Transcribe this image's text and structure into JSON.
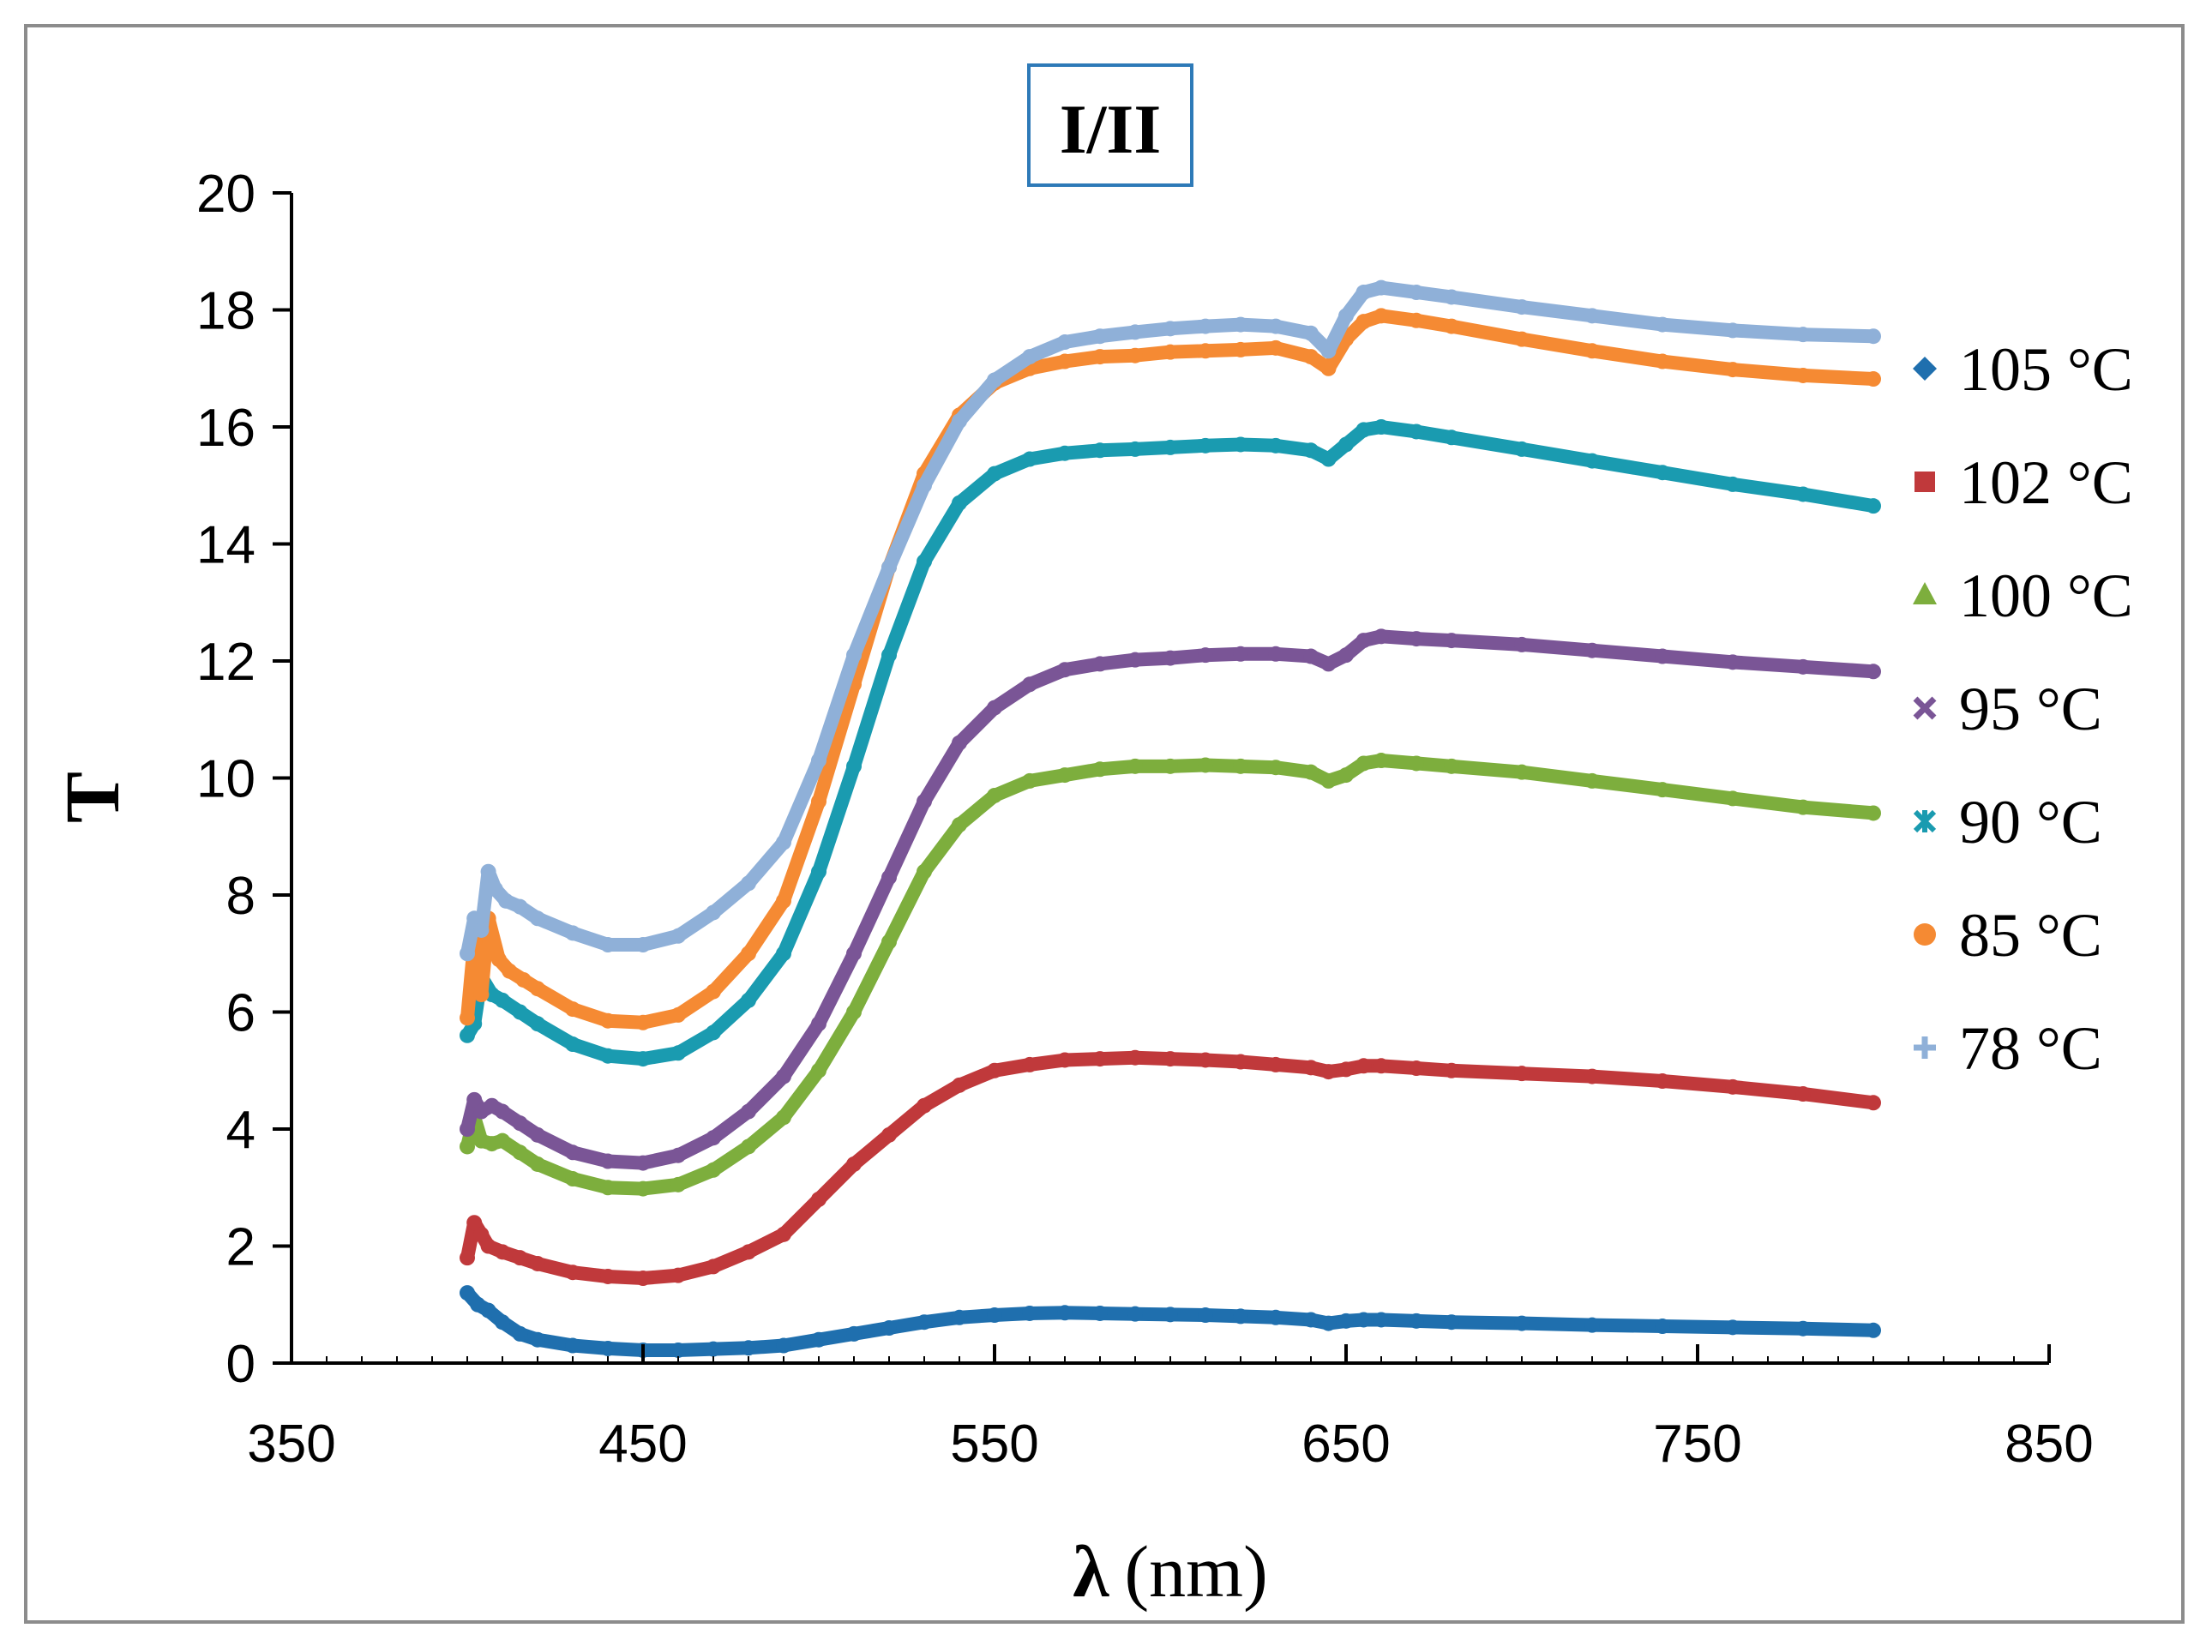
{
  "chart_data": {
    "type": "scatter",
    "title": "I/II",
    "xlabel_symbol": "λ",
    "xlabel_unit": "(nm)",
    "ylabel": "T",
    "xlim": [
      350,
      850
    ],
    "ylim": [
      0,
      20
    ],
    "xticks": [
      350,
      450,
      550,
      650,
      750,
      850
    ],
    "yticks": [
      0,
      2,
      4,
      6,
      8,
      10,
      12,
      14,
      16,
      18,
      20
    ],
    "legend_position": "right",
    "series": [
      {
        "name": "105 °C",
        "color": "#1f6fae",
        "marker": "diamond",
        "x": [
          400,
          403,
          406,
          410,
          415,
          420,
          430,
          440,
          450,
          460,
          470,
          480,
          490,
          500,
          510,
          520,
          530,
          540,
          550,
          560,
          570,
          580,
          590,
          600,
          610,
          620,
          630,
          640,
          645,
          650,
          655,
          660,
          670,
          680,
          700,
          720,
          740,
          760,
          780,
          800
        ],
        "y": [
          1.2,
          1.0,
          0.9,
          0.7,
          0.5,
          0.4,
          0.3,
          0.25,
          0.22,
          0.22,
          0.24,
          0.26,
          0.3,
          0.4,
          0.5,
          0.6,
          0.7,
          0.78,
          0.82,
          0.85,
          0.86,
          0.85,
          0.84,
          0.83,
          0.82,
          0.8,
          0.78,
          0.74,
          0.68,
          0.72,
          0.74,
          0.74,
          0.72,
          0.7,
          0.68,
          0.65,
          0.63,
          0.61,
          0.59,
          0.56
        ]
      },
      {
        "name": "102 °C",
        "color": "#c0393b",
        "marker": "square",
        "x": [
          400,
          402,
          404,
          406,
          410,
          415,
          420,
          430,
          440,
          450,
          460,
          470,
          480,
          490,
          500,
          510,
          520,
          530,
          540,
          550,
          560,
          570,
          580,
          590,
          600,
          610,
          620,
          630,
          640,
          645,
          650,
          655,
          660,
          670,
          680,
          700,
          720,
          740,
          760,
          780,
          800
        ],
        "y": [
          1.8,
          2.4,
          2.2,
          2.0,
          1.9,
          1.8,
          1.7,
          1.55,
          1.48,
          1.45,
          1.5,
          1.65,
          1.9,
          2.2,
          2.8,
          3.4,
          3.9,
          4.4,
          4.75,
          5.0,
          5.1,
          5.18,
          5.2,
          5.22,
          5.2,
          5.18,
          5.15,
          5.1,
          5.05,
          4.98,
          5.02,
          5.08,
          5.08,
          5.04,
          5.0,
          4.95,
          4.9,
          4.82,
          4.72,
          4.6,
          4.45
        ]
      },
      {
        "name": "100 °C",
        "color": "#7dae3d",
        "marker": "triangle",
        "x": [
          400,
          402,
          404,
          407,
          410,
          415,
          420,
          430,
          440,
          450,
          460,
          470,
          480,
          490,
          500,
          510,
          520,
          530,
          540,
          550,
          560,
          570,
          580,
          590,
          600,
          610,
          620,
          630,
          640,
          645,
          650,
          655,
          660,
          670,
          680,
          700,
          720,
          740,
          760,
          780,
          800
        ],
        "y": [
          3.7,
          4.2,
          3.8,
          3.75,
          3.8,
          3.6,
          3.4,
          3.15,
          3.0,
          2.98,
          3.05,
          3.3,
          3.7,
          4.2,
          5.0,
          6.0,
          7.2,
          8.4,
          9.2,
          9.7,
          9.95,
          10.05,
          10.15,
          10.2,
          10.2,
          10.22,
          10.2,
          10.18,
          10.1,
          9.95,
          10.05,
          10.25,
          10.3,
          10.25,
          10.2,
          10.1,
          9.95,
          9.8,
          9.65,
          9.5,
          9.4
        ]
      },
      {
        "name": "95 °C",
        "color": "#7a5596",
        "marker": "x",
        "x": [
          400,
          402,
          404,
          407,
          410,
          415,
          420,
          430,
          440,
          450,
          460,
          470,
          480,
          490,
          500,
          510,
          520,
          530,
          540,
          550,
          560,
          570,
          580,
          590,
          600,
          610,
          620,
          630,
          640,
          645,
          650,
          655,
          660,
          670,
          680,
          700,
          720,
          740,
          760,
          780,
          800
        ],
        "y": [
          4.0,
          4.5,
          4.3,
          4.4,
          4.3,
          4.1,
          3.9,
          3.6,
          3.45,
          3.42,
          3.55,
          3.85,
          4.3,
          4.9,
          5.8,
          7.0,
          8.3,
          9.6,
          10.6,
          11.2,
          11.6,
          11.85,
          11.95,
          12.02,
          12.05,
          12.1,
          12.12,
          12.12,
          12.08,
          11.95,
          12.1,
          12.35,
          12.42,
          12.38,
          12.35,
          12.28,
          12.18,
          12.08,
          11.98,
          11.9,
          11.82
        ]
      },
      {
        "name": "90 °C",
        "color": "#1a9bb0",
        "marker": "star",
        "x": [
          400,
          402,
          404,
          407,
          410,
          415,
          420,
          430,
          440,
          450,
          460,
          470,
          480,
          490,
          500,
          510,
          520,
          530,
          540,
          550,
          560,
          570,
          580,
          590,
          600,
          610,
          620,
          630,
          640,
          645,
          650,
          655,
          660,
          670,
          680,
          700,
          720,
          740,
          760,
          780,
          800
        ],
        "y": [
          5.6,
          5.8,
          6.6,
          6.3,
          6.2,
          6.0,
          5.8,
          5.45,
          5.25,
          5.2,
          5.3,
          5.65,
          6.2,
          7.0,
          8.4,
          10.2,
          12.1,
          13.7,
          14.7,
          15.2,
          15.45,
          15.55,
          15.6,
          15.62,
          15.65,
          15.68,
          15.7,
          15.68,
          15.6,
          15.45,
          15.7,
          15.95,
          16.0,
          15.92,
          15.82,
          15.62,
          15.42,
          15.22,
          15.02,
          14.85,
          14.65
        ]
      },
      {
        "name": "85 °C",
        "color": "#f58a33",
        "marker": "circle",
        "x": [
          400,
          402,
          404,
          406,
          409,
          412,
          416,
          420,
          430,
          440,
          450,
          460,
          470,
          480,
          490,
          500,
          510,
          520,
          530,
          540,
          550,
          560,
          570,
          580,
          590,
          600,
          610,
          620,
          630,
          640,
          645,
          650,
          655,
          660,
          670,
          680,
          700,
          720,
          740,
          760,
          780,
          800
        ],
        "y": [
          5.9,
          7.2,
          6.3,
          7.6,
          6.9,
          6.7,
          6.55,
          6.4,
          6.05,
          5.85,
          5.82,
          5.95,
          6.35,
          7.0,
          7.9,
          9.6,
          11.6,
          13.6,
          15.2,
          16.2,
          16.75,
          17.0,
          17.12,
          17.2,
          17.22,
          17.28,
          17.3,
          17.32,
          17.35,
          17.2,
          17.0,
          17.5,
          17.8,
          17.9,
          17.82,
          17.72,
          17.5,
          17.3,
          17.12,
          16.98,
          16.88,
          16.82
        ]
      },
      {
        "name": "78 °C",
        "color": "#8fb0d8",
        "marker": "plus",
        "x": [
          400,
          402,
          404,
          406,
          408,
          411,
          415,
          420,
          430,
          440,
          450,
          460,
          470,
          480,
          490,
          500,
          510,
          520,
          530,
          540,
          550,
          560,
          570,
          580,
          590,
          600,
          610,
          620,
          630,
          640,
          645,
          650,
          655,
          660,
          670,
          680,
          700,
          720,
          740,
          760,
          780,
          800
        ],
        "y": [
          7.0,
          7.6,
          7.4,
          8.4,
          8.1,
          7.9,
          7.8,
          7.6,
          7.35,
          7.15,
          7.15,
          7.3,
          7.7,
          8.2,
          8.9,
          10.3,
          12.1,
          13.6,
          15.0,
          16.1,
          16.8,
          17.2,
          17.45,
          17.55,
          17.62,
          17.68,
          17.72,
          17.75,
          17.72,
          17.6,
          17.3,
          17.9,
          18.3,
          18.38,
          18.3,
          18.22,
          18.05,
          17.9,
          17.75,
          17.65,
          17.58,
          17.55
        ]
      }
    ]
  }
}
